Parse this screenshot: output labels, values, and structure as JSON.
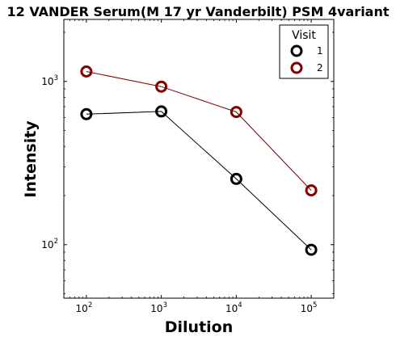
{
  "chart_data": {
    "type": "line",
    "title": "12 VANDER Serum(M 17 yr Vanderbilt) PSM 4variant",
    "xlabel": "Dilution",
    "ylabel": "Intensity",
    "xscale": "log",
    "yscale": "log",
    "xlim": [
      50,
      200000
    ],
    "ylim": [
      47,
      2400
    ],
    "x": [
      100,
      1000,
      10000,
      100000
    ],
    "x_ticks": [
      {
        "value": 100,
        "base": "10",
        "exp": "2"
      },
      {
        "value": 1000,
        "base": "10",
        "exp": "3"
      },
      {
        "value": 10000,
        "base": "10",
        "exp": "4"
      },
      {
        "value": 100000,
        "base": "10",
        "exp": "5"
      }
    ],
    "y_ticks": [
      {
        "value": 100,
        "base": "10",
        "exp": "2"
      },
      {
        "value": 1000,
        "base": "10",
        "exp": "3"
      }
    ],
    "series": [
      {
        "name": "1",
        "color": "#000000",
        "values": [
          630,
          655,
          253,
          93
        ]
      },
      {
        "name": "2",
        "color": "#800000",
        "values": [
          1150,
          930,
          650,
          215
        ]
      }
    ],
    "legend": {
      "title": "Visit",
      "placement": "top-right"
    },
    "grid": false
  }
}
